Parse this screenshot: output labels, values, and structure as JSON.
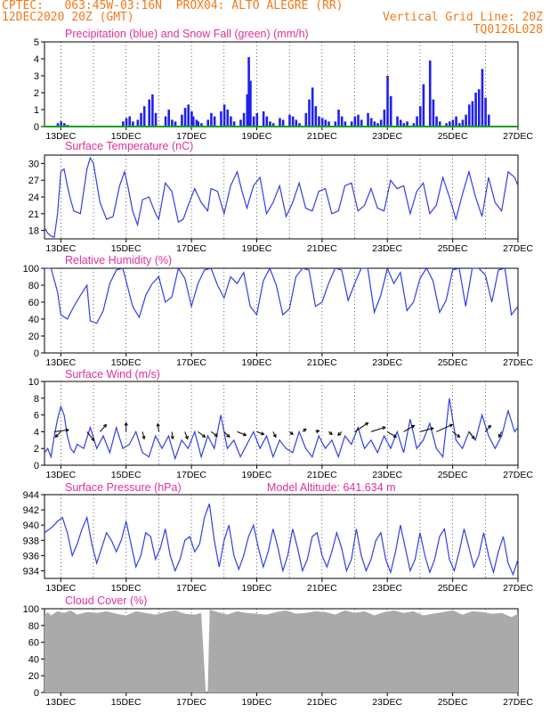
{
  "header": {
    "line1": "CPTEC:   063:45W-03:16N  PROX04: ALTO ALEGRE (RR)",
    "line2_left": "12DEC2020 20Z (GMT)",
    "line2_right": "Vertical Grid Line: 20Z",
    "line3_right": "TQ0126L028"
  },
  "colors": {
    "header": "#f07a1a",
    "title": "#e0309a",
    "precip": "#2020ee",
    "snow": "#19a019",
    "line": "#3040e0",
    "cloud": "#aaaaaa",
    "grid": "#000000"
  },
  "chart_data": [
    {
      "id": "precip",
      "type": "bar",
      "title": "Precipitation (blue) and Snow Fall (green) (mm/h)",
      "ylim": [
        0,
        5
      ],
      "yticks": [
        "0",
        "1",
        "2",
        "3",
        "4",
        "5"
      ],
      "xticks": [
        "13DEC",
        "15DEC",
        "17DEC",
        "19DEC",
        "21DEC",
        "23DEC",
        "25DEC",
        "27DEC"
      ],
      "series": [
        {
          "name": "Precipitation",
          "values_desc": "hourly",
          "x": [
            12.9,
            13.0,
            13.1,
            13.2,
            14.9,
            15.0,
            15.1,
            15.2,
            15.35,
            15.45,
            15.55,
            15.7,
            15.8,
            15.9,
            16.2,
            16.3,
            16.4,
            16.5,
            16.7,
            16.8,
            16.9,
            17.0,
            17.05,
            17.15,
            17.2,
            17.3,
            17.5,
            17.6,
            17.7,
            17.9,
            18.0,
            18.1,
            18.2,
            18.3,
            18.5,
            18.6,
            18.7,
            18.75,
            18.8,
            18.9,
            19.0,
            19.2,
            19.3,
            19.4,
            19.5,
            19.7,
            19.8,
            20.0,
            20.1,
            20.2,
            20.3,
            20.5,
            20.6,
            20.7,
            20.8,
            20.9,
            21.0,
            21.1,
            21.2,
            21.4,
            21.5,
            21.6,
            21.7,
            21.9,
            22.0,
            22.1,
            22.2,
            22.4,
            22.5,
            22.6,
            22.7,
            22.8,
            22.9,
            23.0,
            23.1,
            23.3,
            23.4,
            23.5,
            23.6,
            23.8,
            23.9,
            24.0,
            24.1,
            24.3,
            24.4,
            24.5,
            24.6,
            24.8,
            24.9,
            25.0,
            25.1,
            25.2,
            25.3,
            25.4,
            25.5,
            25.6,
            25.7,
            25.8,
            25.9,
            26.0,
            26.1
          ],
          "values": [
            0.2,
            0.3,
            0.2,
            0.1,
            0.3,
            0.5,
            0.6,
            0.3,
            0.4,
            0.8,
            1.2,
            1.6,
            1.9,
            0.8,
            0.6,
            1.0,
            0.4,
            0.3,
            0.7,
            1.1,
            1.3,
            0.9,
            0.6,
            0.4,
            0.3,
            0.2,
            0.4,
            0.8,
            0.6,
            0.9,
            1.3,
            1.0,
            0.6,
            0.3,
            0.4,
            0.8,
            1.9,
            4.1,
            2.7,
            0.6,
            0.8,
            0.9,
            0.6,
            0.3,
            0.2,
            0.5,
            0.4,
            0.7,
            0.6,
            0.4,
            0.2,
            0.8,
            1.6,
            2.3,
            1.2,
            0.6,
            0.5,
            0.4,
            0.3,
            0.3,
            1.0,
            0.6,
            0.3,
            0.3,
            0.6,
            0.7,
            0.4,
            0.8,
            0.5,
            0.3,
            0.2,
            0.4,
            1.0,
            3.0,
            1.8,
            0.6,
            0.4,
            0.2,
            0.3,
            0.2,
            0.6,
            1.2,
            2.5,
            3.9,
            1.6,
            0.6,
            0.3,
            0.2,
            0.3,
            0.4,
            0.6,
            0.2,
            0.4,
            0.7,
            1.3,
            1.5,
            2.0,
            2.2,
            3.4,
            1.7,
            0.7
          ]
        },
        {
          "name": "Snow Fall",
          "x": [
            12.5,
            27.0
          ],
          "values": [
            0,
            0
          ]
        }
      ]
    },
    {
      "id": "temp",
      "type": "line",
      "title": "Surface Temperature (nC)",
      "ylim": [
        16.5,
        31.5
      ],
      "yticks": [
        "18",
        "21",
        "24",
        "27",
        "30"
      ],
      "xticks": [
        "13DEC",
        "15DEC",
        "17DEC",
        "19DEC",
        "21DEC",
        "23DEC",
        "25DEC",
        "27DEC"
      ],
      "x": [
        12.5,
        12.6,
        12.7,
        12.8,
        12.9,
        13.0,
        13.1,
        13.2,
        13.3,
        13.4,
        13.6,
        13.8,
        13.9,
        14.0,
        14.2,
        14.4,
        14.6,
        14.8,
        14.95,
        15.05,
        15.2,
        15.35,
        15.5,
        15.7,
        15.9,
        16.0,
        16.2,
        16.4,
        16.6,
        16.75,
        16.9,
        17.1,
        17.3,
        17.5,
        17.6,
        17.8,
        18.0,
        18.2,
        18.4,
        18.55,
        18.7,
        18.9,
        19.1,
        19.3,
        19.5,
        19.7,
        19.9,
        20.1,
        20.3,
        20.5,
        20.7,
        20.9,
        21.1,
        21.3,
        21.5,
        21.7,
        21.9,
        22.1,
        22.3,
        22.5,
        22.7,
        22.9,
        23.1,
        23.3,
        23.5,
        23.7,
        23.9,
        24.1,
        24.3,
        24.5,
        24.7,
        24.9,
        25.1,
        25.3,
        25.5,
        25.7,
        25.9,
        26.1,
        26.3,
        26.5,
        26.7,
        26.9,
        27.0
      ],
      "values": [
        18.5,
        17.5,
        17.0,
        16.8,
        21.0,
        28.5,
        29.0,
        26.0,
        23.5,
        21.5,
        21.0,
        29.0,
        31.0,
        30.0,
        23.0,
        20.0,
        20.5,
        26.0,
        28.5,
        26.0,
        21.5,
        19.0,
        23.5,
        24.0,
        21.0,
        20.0,
        26.5,
        25.0,
        19.5,
        20.0,
        22.5,
        25.5,
        23.0,
        21.5,
        25.5,
        25.0,
        21.0,
        26.0,
        28.5,
        25.0,
        22.0,
        26.0,
        27.5,
        21.0,
        23.0,
        26.0,
        20.5,
        23.0,
        26.5,
        22.0,
        21.5,
        25.0,
        25.5,
        21.0,
        21.5,
        26.0,
        26.5,
        21.5,
        22.5,
        25.5,
        22.0,
        21.5,
        27.0,
        25.5,
        26.0,
        21.0,
        25.0,
        26.5,
        21.0,
        22.5,
        27.5,
        24.0,
        20.0,
        24.5,
        28.5,
        24.0,
        20.5,
        27.5,
        23.0,
        21.5,
        28.5,
        27.5,
        26.0
      ]
    },
    {
      "id": "rh",
      "type": "line",
      "title": "Relative Humidity (%)",
      "ylim": [
        0,
        100
      ],
      "yticks": [
        "0",
        "20",
        "40",
        "60",
        "80",
        "100"
      ],
      "xticks": [
        "13DEC",
        "15DEC",
        "17DEC",
        "19DEC",
        "21DEC",
        "23DEC",
        "25DEC",
        "27DEC"
      ],
      "x": [
        12.5,
        12.7,
        12.9,
        13.0,
        13.2,
        13.4,
        13.6,
        13.8,
        13.9,
        14.1,
        14.3,
        14.5,
        14.7,
        14.9,
        15.0,
        15.2,
        15.4,
        15.6,
        15.8,
        16.0,
        16.2,
        16.4,
        16.6,
        16.8,
        17.0,
        17.2,
        17.4,
        17.6,
        17.8,
        18.0,
        18.2,
        18.4,
        18.6,
        18.8,
        19.0,
        19.2,
        19.4,
        19.6,
        19.8,
        20.0,
        20.2,
        20.4,
        20.6,
        20.8,
        21.0,
        21.2,
        21.4,
        21.6,
        21.8,
        22.0,
        22.2,
        22.4,
        22.6,
        22.8,
        23.0,
        23.2,
        23.4,
        23.6,
        23.8,
        24.0,
        24.2,
        24.4,
        24.6,
        24.8,
        25.0,
        25.2,
        25.4,
        25.6,
        25.8,
        26.0,
        26.2,
        26.4,
        26.6,
        26.8,
        27.0
      ],
      "values": [
        100,
        100,
        72,
        45,
        40,
        55,
        68,
        80,
        38,
        35,
        50,
        82,
        98,
        100,
        85,
        55,
        42,
        68,
        82,
        90,
        60,
        66,
        100,
        88,
        55,
        82,
        98,
        100,
        80,
        65,
        90,
        82,
        95,
        55,
        45,
        85,
        100,
        80,
        45,
        52,
        90,
        100,
        98,
        55,
        60,
        82,
        100,
        98,
        62,
        82,
        100,
        100,
        48,
        68,
        100,
        82,
        95,
        50,
        60,
        88,
        100,
        85,
        48,
        62,
        98,
        100,
        55,
        100,
        100,
        92,
        60,
        98,
        100,
        45,
        55
      ]
    },
    {
      "id": "wind",
      "type": "line",
      "title": "Surface Wind (m/s)",
      "ylim": [
        0,
        10
      ],
      "yticks": [
        "0",
        "2",
        "4",
        "6",
        "8",
        "10"
      ],
      "xticks": [
        "13DEC",
        "15DEC",
        "17DEC",
        "19DEC",
        "21DEC",
        "23DEC",
        "25DEC",
        "27DEC"
      ],
      "x": [
        12.5,
        12.6,
        12.7,
        12.8,
        12.9,
        13.0,
        13.1,
        13.2,
        13.3,
        13.4,
        13.5,
        13.7,
        13.9,
        14.1,
        14.3,
        14.5,
        14.7,
        14.9,
        15.1,
        15.3,
        15.5,
        15.7,
        15.9,
        16.1,
        16.3,
        16.5,
        16.7,
        16.9,
        17.1,
        17.3,
        17.5,
        17.7,
        17.9,
        18.1,
        18.3,
        18.5,
        18.7,
        18.9,
        19.1,
        19.3,
        19.5,
        19.7,
        19.9,
        20.1,
        20.3,
        20.5,
        20.7,
        20.9,
        21.1,
        21.3,
        21.5,
        21.7,
        21.9,
        22.1,
        22.3,
        22.5,
        22.7,
        22.9,
        23.1,
        23.3,
        23.5,
        23.7,
        23.9,
        24.1,
        24.3,
        24.5,
        24.7,
        24.9,
        25.1,
        25.3,
        25.5,
        25.7,
        25.9,
        26.1,
        26.3,
        26.5,
        26.7,
        26.9,
        27.0
      ],
      "values": [
        1.5,
        2.0,
        1.0,
        3.5,
        5.5,
        7.0,
        6.0,
        3.5,
        2.0,
        1.5,
        2.5,
        2.0,
        4.5,
        2.0,
        3.5,
        1.5,
        4.5,
        2.0,
        2.5,
        4.0,
        1.5,
        1.0,
        3.5,
        2.0,
        3.5,
        0.8,
        3.0,
        2.0,
        4.0,
        1.0,
        3.5,
        2.0,
        6.0,
        2.0,
        3.0,
        1.0,
        2.5,
        4.0,
        2.0,
        3.5,
        1.0,
        3.0,
        2.0,
        1.5,
        4.0,
        2.0,
        1.0,
        3.5,
        2.0,
        3.0,
        1.0,
        3.5,
        2.5,
        4.5,
        2.0,
        3.0,
        1.5,
        3.5,
        2.0,
        4.0,
        1.5,
        5.5,
        2.0,
        3.0,
        5.0,
        2.0,
        1.0,
        8.0,
        3.0,
        2.0,
        4.0,
        3.0,
        6.0,
        3.5,
        2.0,
        3.5,
        6.5,
        4.0,
        4.5
      ],
      "arrows": {
        "x": [
          12.8,
          13.0,
          13.8,
          14.2,
          15.0,
          15.5,
          16.0,
          16.4,
          16.8,
          17.2,
          17.6,
          18.0,
          18.4,
          19.0,
          19.5,
          20.0,
          20.4,
          20.8,
          21.2,
          21.6,
          22.0,
          22.5,
          23.0,
          23.5,
          24.0,
          24.5,
          25.0,
          25.5,
          26.0,
          26.5
        ],
        "u": [
          1.6,
          -0.6,
          0.8,
          0.7,
          0,
          0.2,
          -0.1,
          0.1,
          0.3,
          0.8,
          0.7,
          0.6,
          1.0,
          0.8,
          0.3,
          0.4,
          0.4,
          0.4,
          0.4,
          -0.4,
          1.5,
          1.6,
          1.0,
          1.2,
          1.5,
          1.8,
          0.8,
          0.6,
          0.6,
          -0.3
        ],
        "v": [
          0.2,
          -0.6,
          -1.0,
          0.8,
          1.0,
          -0.8,
          0.9,
          -0.8,
          -0.8,
          -0.6,
          -0.5,
          -0.6,
          -0.4,
          -0.3,
          -0.6,
          -0.3,
          0.3,
          0.1,
          -0.3,
          -0.4,
          1.0,
          0.5,
          -0.6,
          0.7,
          0.4,
          0.8,
          -0.6,
          -0.8,
          0.7,
          -0.6
        ]
      }
    },
    {
      "id": "pressure",
      "type": "line",
      "title": "Surface Pressure (hPa)",
      "annotation": "Model Altitude: 641.634 m",
      "ylim": [
        933,
        944
      ],
      "yticks": [
        "934",
        "936",
        "938",
        "940",
        "942",
        "944"
      ],
      "xticks": [
        "13DEC",
        "15DEC",
        "17DEC",
        "19DEC",
        "21DEC",
        "23DEC",
        "25DEC",
        "27DEC"
      ],
      "x": [
        12.5,
        12.6,
        12.75,
        12.9,
        13.05,
        13.2,
        13.35,
        13.5,
        13.65,
        13.8,
        13.95,
        14.1,
        14.25,
        14.4,
        14.55,
        14.7,
        14.85,
        15.0,
        15.15,
        15.3,
        15.45,
        15.6,
        15.75,
        15.9,
        16.05,
        16.2,
        16.35,
        16.5,
        16.65,
        16.8,
        16.95,
        17.1,
        17.25,
        17.4,
        17.55,
        17.7,
        17.85,
        18.0,
        18.15,
        18.3,
        18.45,
        18.6,
        18.75,
        18.9,
        19.05,
        19.2,
        19.35,
        19.5,
        19.65,
        19.8,
        19.95,
        20.1,
        20.25,
        20.4,
        20.55,
        20.7,
        20.85,
        21.0,
        21.15,
        21.3,
        21.45,
        21.6,
        21.75,
        21.9,
        22.05,
        22.2,
        22.35,
        22.5,
        22.65,
        22.8,
        22.95,
        23.1,
        23.25,
        23.4,
        23.55,
        23.7,
        23.85,
        24.0,
        24.15,
        24.3,
        24.45,
        24.6,
        24.75,
        24.9,
        25.05,
        25.2,
        25.35,
        25.5,
        25.65,
        25.8,
        25.95,
        26.1,
        26.25,
        26.4,
        26.55,
        26.7,
        26.85,
        27.0
      ],
      "values": [
        939.0,
        939.3,
        939.8,
        940.5,
        941.0,
        939.0,
        936.0,
        937.5,
        939.5,
        941.0,
        937.5,
        935.0,
        937.0,
        939.0,
        938.0,
        936.5,
        938.0,
        940.5,
        937.5,
        934.5,
        936.0,
        939.0,
        938.5,
        935.5,
        937.0,
        939.5,
        936.0,
        934.0,
        935.5,
        938.0,
        938.5,
        936.5,
        937.5,
        941.0,
        942.8,
        938.0,
        934.5,
        938.0,
        940.0,
        936.0,
        934.2,
        936.0,
        938.5,
        940.0,
        937.0,
        934.5,
        936.5,
        939.5,
        937.0,
        934.0,
        936.0,
        939.5,
        937.0,
        934.0,
        935.5,
        938.5,
        939.0,
        936.0,
        934.5,
        936.5,
        939.0,
        937.0,
        934.0,
        935.5,
        939.5,
        936.0,
        934.0,
        935.5,
        938.0,
        939.0,
        935.5,
        933.8,
        936.5,
        940.0,
        937.0,
        934.0,
        935.5,
        939.0,
        936.0,
        933.8,
        935.5,
        938.5,
        939.5,
        935.5,
        934.0,
        936.5,
        939.5,
        937.0,
        934.5,
        936.0,
        939.0,
        936.0,
        933.8,
        936.5,
        938.5,
        935.0,
        933.5,
        935.5
      ]
    },
    {
      "id": "cloud",
      "type": "area",
      "title": "Cloud Cover (%)",
      "ylim": [
        0,
        100
      ],
      "yticks": [
        "0",
        "20",
        "40",
        "60",
        "80",
        "100"
      ],
      "xticks": [
        "13DEC",
        "15DEC",
        "17DEC",
        "19DEC",
        "21DEC",
        "23DEC",
        "25DEC",
        "27DEC"
      ],
      "x": [
        12.5,
        12.6,
        12.7,
        12.9,
        13.1,
        13.3,
        13.5,
        13.8,
        14.1,
        14.4,
        14.7,
        15.0,
        15.3,
        15.6,
        15.9,
        16.2,
        16.5,
        16.8,
        17.1,
        17.3,
        17.44,
        17.5,
        17.56,
        17.8,
        18.1,
        18.4,
        18.7,
        19.0,
        19.3,
        19.6,
        19.9,
        20.2,
        20.5,
        20.8,
        21.1,
        21.4,
        21.7,
        22.0,
        22.3,
        22.6,
        22.9,
        23.2,
        23.5,
        23.8,
        24.1,
        24.4,
        24.7,
        25.0,
        25.3,
        25.6,
        25.9,
        26.2,
        26.5,
        26.8,
        27.0
      ],
      "values": [
        92,
        96,
        92,
        97,
        95,
        98,
        93,
        96,
        95,
        97,
        94,
        92,
        97,
        95,
        93,
        96,
        98,
        94,
        93,
        95,
        0,
        0,
        99,
        96,
        93,
        97,
        95,
        94,
        93,
        96,
        98,
        94,
        95,
        97,
        96,
        93,
        98,
        95,
        97,
        92,
        96,
        98,
        95,
        97,
        92,
        94,
        96,
        98,
        93,
        97,
        96,
        94,
        95,
        90,
        94
      ]
    }
  ]
}
